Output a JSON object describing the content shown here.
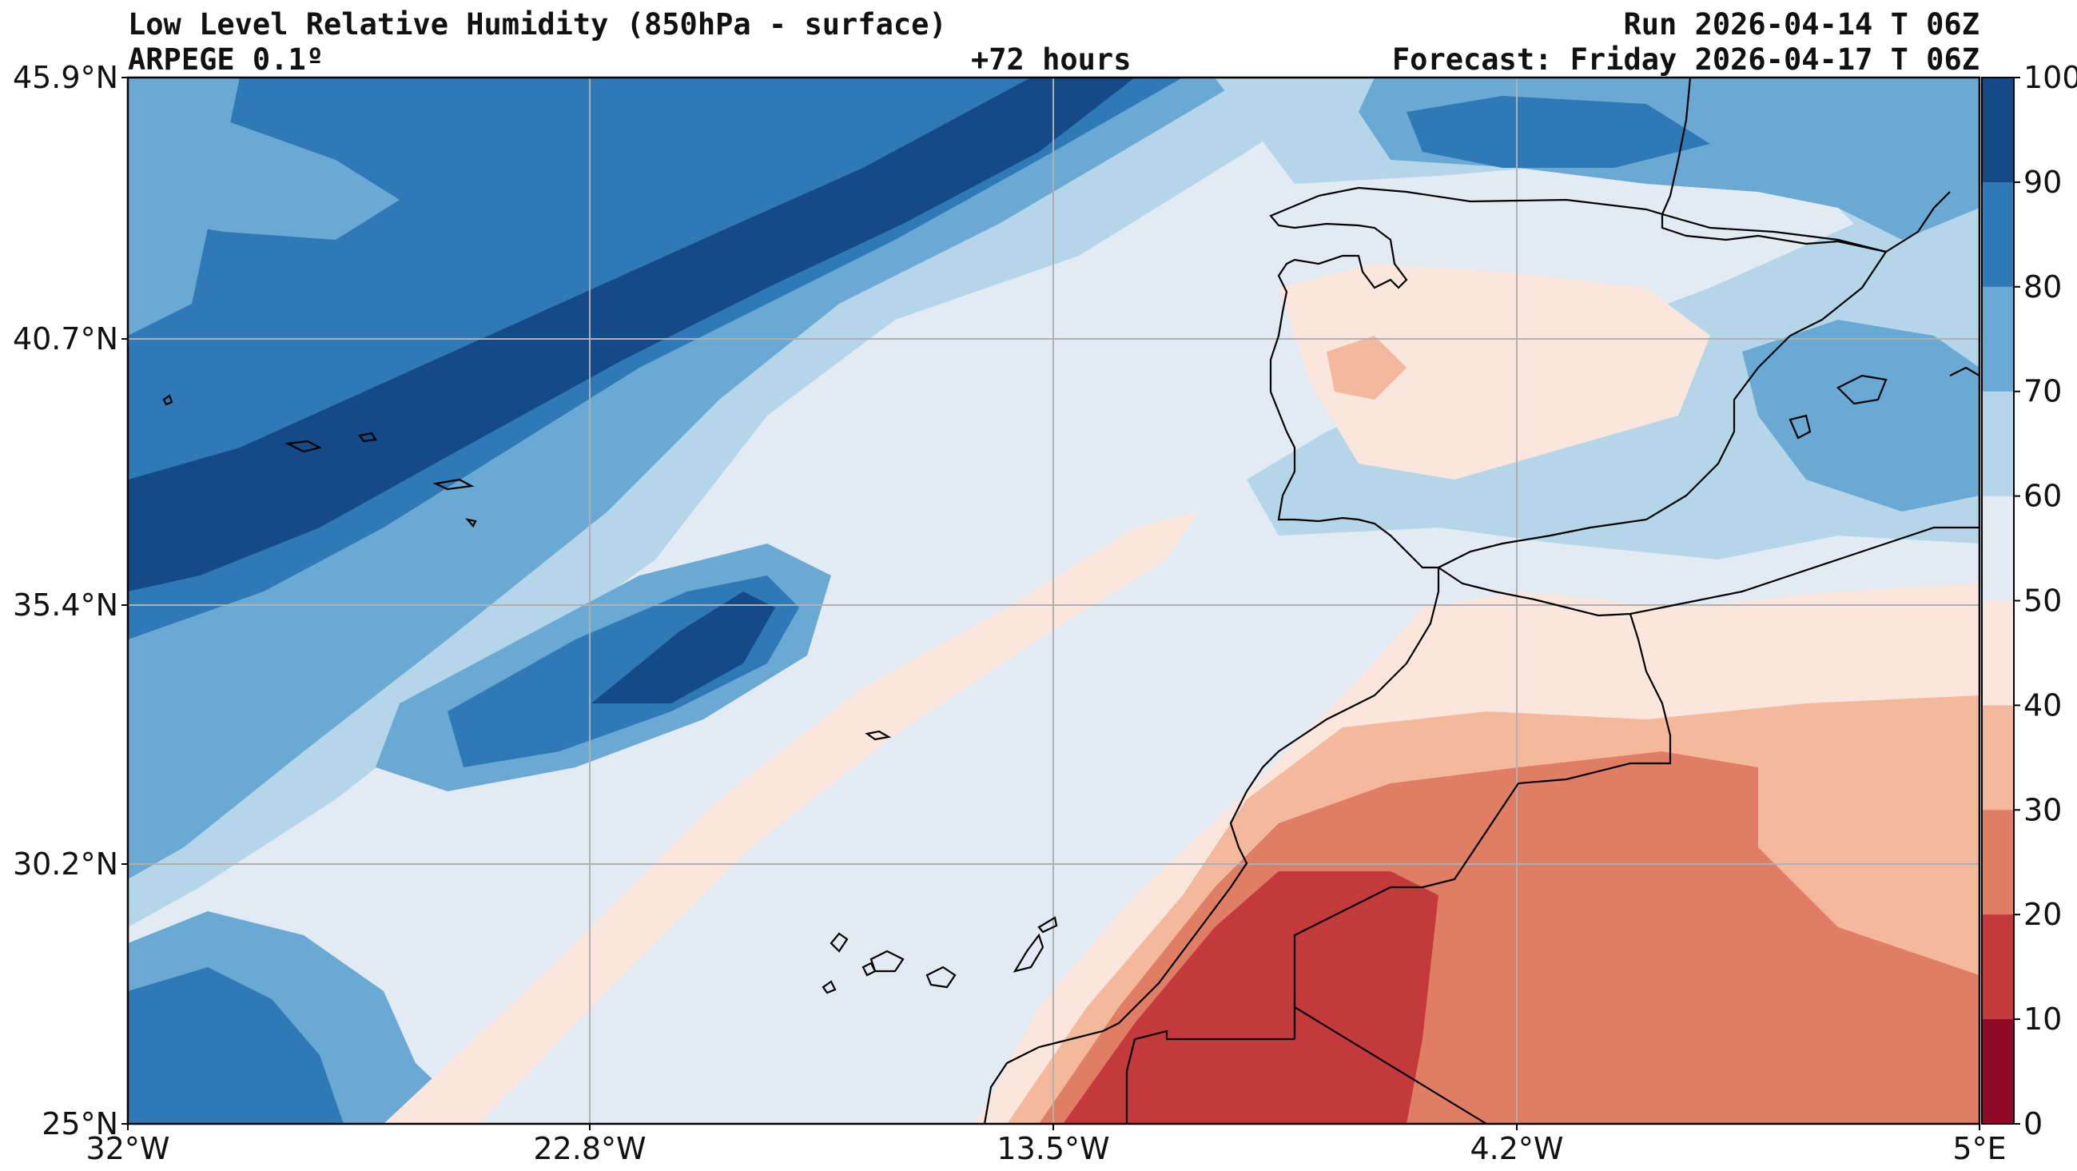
{
  "header": {
    "title": "Low Level Relative Humidity (850hPa - surface)",
    "model": "ARPEGE 0.1º",
    "lead": "+72 hours",
    "run": "Run 2026-04-14 T 06Z",
    "forecast": "Forecast: Friday 2026-04-17 T 06Z"
  },
  "map": {
    "lon_range": [
      -32,
      5
    ],
    "lat_range": [
      25,
      45.9
    ],
    "lon_ticks": [
      "32°W",
      "22.8°W",
      "13.5°W",
      "4.2°W",
      "5°E"
    ],
    "lat_ticks": [
      "45.9°N",
      "40.7°N",
      "35.4°N",
      "30.2°N",
      "25°N"
    ],
    "gridlines": true
  },
  "colorbar": {
    "ticks": [
      "100",
      "90",
      "80",
      "70",
      "60",
      "50",
      "40",
      "30",
      "20",
      "10",
      "0"
    ],
    "colors": [
      "#134a87",
      "#2f79b7",
      "#6aa9d3",
      "#b4d6e8",
      "#e2ebf3",
      "#fae6dc",
      "#f4b89d",
      "#e07e65",
      "#c43a3c",
      "#8e0a27"
    ]
  }
}
